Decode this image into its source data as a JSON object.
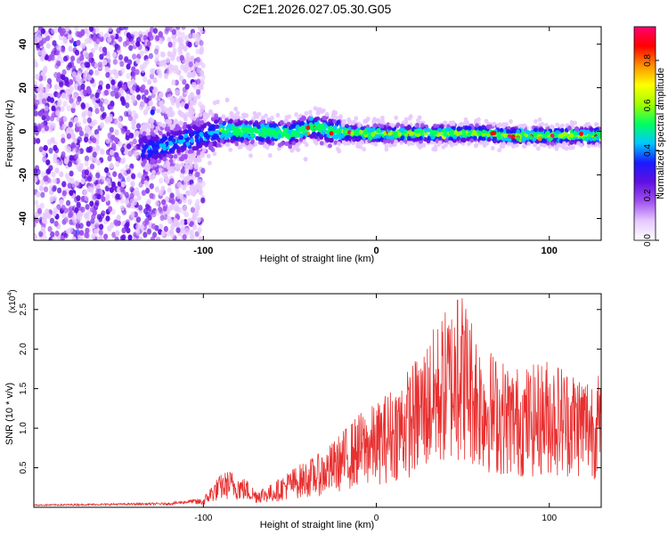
{
  "title": "C2E1.2026.027.05.30.G05",
  "chart_data": [
    {
      "type": "heatmap",
      "title": "C2E1.2026.027.05.30.G05",
      "xlabel": "Height of straight line (km)",
      "ylabel": "Frequency (Hz)",
      "xlim": [
        -198,
        130
      ],
      "ylim": [
        -50,
        48
      ],
      "x_ticks": [
        -100,
        0,
        100
      ],
      "y_ticks": [
        -40,
        -20,
        0,
        20,
        40
      ],
      "colorbar": {
        "label": "Normalized spectral amplitude",
        "range": [
          0,
          0.95
        ],
        "ticks": [
          0.0,
          0.2,
          0.4,
          0.6,
          0.8
        ],
        "tick_labels": [
          "0.0",
          "0.2",
          "0.4",
          "0.6",
          "0.8"
        ],
        "colors": [
          "#ffffff",
          "#e6c8ff",
          "#a050f0",
          "#6010e0",
          "#1a1aff",
          "#00c8ff",
          "#00ff60",
          "#a0ff00",
          "#ffff00",
          "#ff9000",
          "#ff0000",
          "#ff0070"
        ]
      },
      "ridge": {
        "description_points_x": [
          -130,
          -110,
          -90,
          -70,
          -50,
          -35,
          -25,
          -10,
          0,
          20,
          40,
          60,
          80,
          100,
          120,
          130
        ],
        "description_points_y": [
          -8,
          -4,
          0,
          0,
          -1,
          2,
          0,
          -1,
          -1,
          -1,
          -1,
          -1,
          -2,
          -2,
          -2,
          -2
        ]
      }
    },
    {
      "type": "line",
      "xlabel": "Height of straight line (km)",
      "ylabel": "SNR (10 * v/v)",
      "y_multiplier": "(x10",
      "y_multiplier_exp": "4",
      "y_multiplier_close": ")",
      "xlim": [
        -198,
        130
      ],
      "ylim": [
        0,
        2.7
      ],
      "x_ticks": [
        -100,
        0,
        100
      ],
      "y_ticks": [
        0.5,
        1.0,
        1.5,
        2.0,
        2.5
      ],
      "y_tick_labels": [
        "0.5",
        "1.0",
        "1.5",
        "2.0",
        "2.5"
      ],
      "color": "#e83030",
      "envelope_x": [
        -198,
        -120,
        -100,
        -95,
        -90,
        -85,
        -80,
        -75,
        -70,
        -60,
        -50,
        -40,
        -30,
        -20,
        -10,
        0,
        10,
        20,
        30,
        40,
        50,
        60,
        70,
        80,
        90,
        100,
        110,
        120,
        130
      ],
      "envelope_y": [
        0.03,
        0.05,
        0.1,
        0.25,
        0.35,
        0.4,
        0.35,
        0.3,
        0.2,
        0.25,
        0.4,
        0.5,
        0.6,
        0.8,
        1.0,
        1.1,
        1.3,
        1.5,
        1.8,
        2.1,
        2.3,
        1.8,
        1.6,
        1.5,
        1.5,
        1.6,
        1.5,
        1.45,
        1.4
      ],
      "peak": {
        "x": 47,
        "y": 2.62
      }
    }
  ]
}
